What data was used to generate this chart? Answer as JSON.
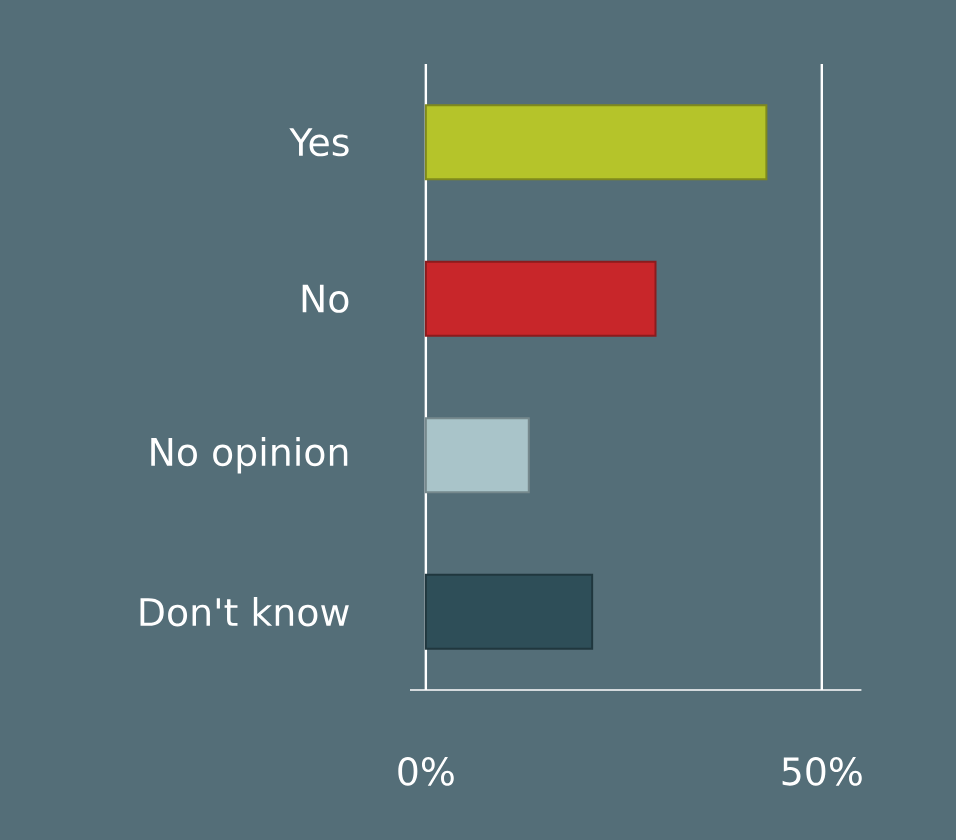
{
  "chart_data": {
    "type": "bar",
    "orientation": "horizontal",
    "categories": [
      "Yes",
      "No",
      "No opinion",
      "Don't know"
    ],
    "values": [
      43,
      29,
      13,
      21
    ],
    "colors": [
      "#b5c42a",
      "#c8262a",
      "#a9c4c9",
      "#2e4e58"
    ],
    "xlim": [
      -2,
      55
    ],
    "xticks": [
      {
        "value": 0,
        "label": "0%"
      },
      {
        "value": 50,
        "label": "50%"
      }
    ],
    "grid": "x"
  }
}
